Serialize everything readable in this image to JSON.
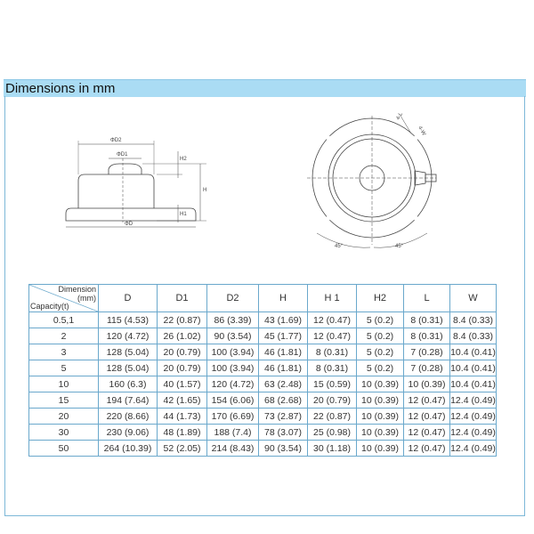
{
  "section_title": "Dimensions in mm",
  "drawing_labels": {
    "d2": "ΦD2",
    "d1": "ΦD1",
    "d": "ΦD",
    "h": "H",
    "h1": "H1",
    "h2": "H2",
    "l": "4-L",
    "w": "4-W",
    "angle1": "45°",
    "angle2": "45°"
  },
  "table": {
    "corner_top": "Dimension\n(mm)",
    "corner_top_line1": "Dimension",
    "corner_top_line2": "(mm)",
    "corner_bottom": "Capacity(t)",
    "columns": [
      "D",
      "D1",
      "D2",
      "H",
      "H 1",
      "H2",
      "L",
      "W"
    ],
    "rows": [
      [
        "0.5,1",
        "115 (4.53)",
        "22 (0.87)",
        "86 (3.39)",
        "43 (1.69)",
        "12 (0.47)",
        "5 (0.2)",
        "8 (0.31)",
        "8.4 (0.33)"
      ],
      [
        "2",
        "120 (4.72)",
        "26 (1.02)",
        "90 (3.54)",
        "45 (1.77)",
        "12 (0.47)",
        "5 (0.2)",
        "8 (0.31)",
        "8.4 (0.33)"
      ],
      [
        "3",
        "128 (5.04)",
        "20 (0.79)",
        "100 (3.94)",
        "46 (1.81)",
        "8 (0.31)",
        "5 (0.2)",
        "7 (0.28)",
        "10.4 (0.41)"
      ],
      [
        "5",
        "128 (5.04)",
        "20 (0.79)",
        "100 (3.94)",
        "46 (1.81)",
        "8 (0.31)",
        "5 (0.2)",
        "7 (0.28)",
        "10.4 (0.41)"
      ],
      [
        "10",
        "160 (6.3)",
        "40 (1.57)",
        "120 (4.72)",
        "63 (2.48)",
        "15 (0.59)",
        "10 (0.39)",
        "10 (0.39)",
        "10.4 (0.41)"
      ],
      [
        "15",
        "194 (7.64)",
        "42 (1.65)",
        "154 (6.06)",
        "68 (2.68)",
        "20 (0.79)",
        "10 (0.39)",
        "12 (0.47)",
        "12.4 (0.49)"
      ],
      [
        "20",
        "220 (8.66)",
        "44 (1.73)",
        "170 (6.69)",
        "73 (2.87)",
        "22 (0.87)",
        "10 (0.39)",
        "12 (0.47)",
        "12.4 (0.49)"
      ],
      [
        "30",
        "230 (9.06)",
        "48 (1.89)",
        "188 (7.4)",
        "78 (3.07)",
        "25 (0.98)",
        "10 (0.39)",
        "12 (0.47)",
        "12.4 (0.49)"
      ],
      [
        "50",
        "264 (10.39)",
        "52 (2.05)",
        "214 (8.43)",
        "90 (3.54)",
        "30 (1.18)",
        "10 (0.39)",
        "12 (0.47)",
        "12.4 (0.49)"
      ]
    ]
  }
}
